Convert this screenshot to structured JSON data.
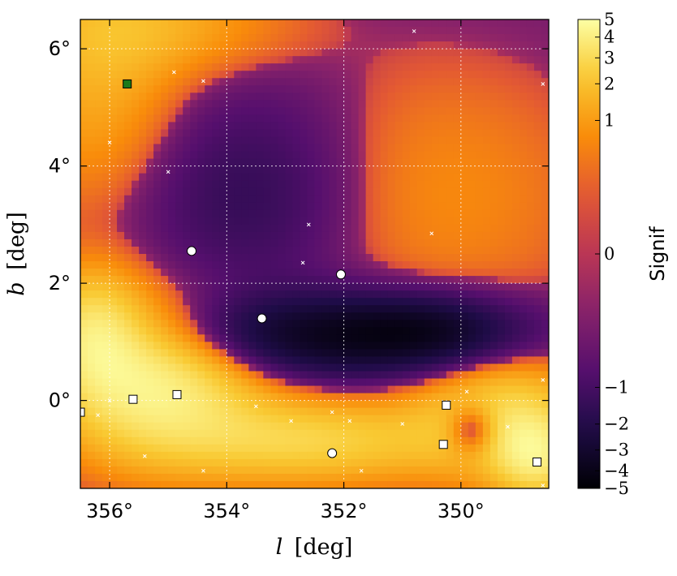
{
  "chart_data": {
    "type": "heatmap",
    "title": "",
    "xlabel_symbol": "l",
    "xlabel_unit": "[deg]",
    "ylabel_symbol": "b",
    "ylabel_unit": "[deg]",
    "x_direction": "decreasing",
    "xlim": [
      356.5,
      348.5
    ],
    "ylim": [
      -1.5,
      6.5
    ],
    "x_ticks": [
      {
        "value": 356,
        "label": "356°"
      },
      {
        "value": 354,
        "label": "354°"
      },
      {
        "value": 352,
        "label": "352°"
      },
      {
        "value": 350,
        "label": "350°"
      }
    ],
    "y_ticks": [
      {
        "value": 0,
        "label": "0°"
      },
      {
        "value": 2,
        "label": "2°"
      },
      {
        "value": 4,
        "label": "4°"
      },
      {
        "value": 6,
        "label": "6°"
      }
    ],
    "grid": true,
    "colormap": "inferno",
    "colorbar": {
      "label": "Signif",
      "range": [
        -5,
        5
      ],
      "ticks": [
        {
          "value": 5,
          "label": "5"
        },
        {
          "value": 4,
          "label": "4"
        },
        {
          "value": 3,
          "label": "3"
        },
        {
          "value": 2,
          "label": "2"
        },
        {
          "value": 1,
          "label": "1"
        },
        {
          "value": 0,
          "label": "0"
        },
        {
          "value": -1,
          "label": "−1"
        },
        {
          "value": -2,
          "label": "−2"
        },
        {
          "value": -3,
          "label": "−3"
        },
        {
          "value": -4,
          "label": "−4"
        },
        {
          "value": -5,
          "label": "−5"
        }
      ]
    },
    "significance_blobs": [
      {
        "l": 355.2,
        "b": 0.3,
        "sigma_l": 1.2,
        "sigma_b": 0.9,
        "amp": 4.5
      },
      {
        "l": 356.3,
        "b": 1.2,
        "sigma_l": 0.6,
        "sigma_b": 0.7,
        "amp": 3.0
      },
      {
        "l": 352.5,
        "b": -0.7,
        "sigma_l": 1.6,
        "sigma_b": 0.5,
        "amp": 2.8
      },
      {
        "l": 349.3,
        "b": -0.3,
        "sigma_l": 1.0,
        "sigma_b": 0.7,
        "amp": 3.0
      },
      {
        "l": 348.7,
        "b": -1.0,
        "sigma_l": 0.5,
        "sigma_b": 0.5,
        "amp": 3.0
      },
      {
        "l": 356.2,
        "b": 5.5,
        "sigma_l": 1.0,
        "sigma_b": 1.5,
        "amp": 1.6
      },
      {
        "l": 355.0,
        "b": 6.4,
        "sigma_l": 1.5,
        "sigma_b": 0.6,
        "amp": 1.3
      },
      {
        "l": 350.3,
        "b": 3.5,
        "sigma_l": 1.8,
        "sigma_b": 1.6,
        "amp": 0.9
      },
      {
        "l": 352.3,
        "b": 1.1,
        "sigma_l": 2.0,
        "sigma_b": 0.5,
        "amp": -3.5
      },
      {
        "l": 350.5,
        "b": 1.2,
        "sigma_l": 1.0,
        "sigma_b": 0.4,
        "amp": -1.8
      },
      {
        "l": 353.6,
        "b": 3.5,
        "sigma_l": 1.3,
        "sigma_b": 1.2,
        "amp": -1.3
      },
      {
        "l": 349.8,
        "b": -0.5,
        "sigma_l": 0.3,
        "sigma_b": 0.3,
        "amp": -3.0
      }
    ],
    "circle_markers": [
      {
        "l": 354.6,
        "b": 2.55
      },
      {
        "l": 352.05,
        "b": 2.15
      },
      {
        "l": 353.4,
        "b": 1.4
      },
      {
        "l": 352.2,
        "b": -0.9
      }
    ],
    "open_square_markers": [
      {
        "l": 355.6,
        "b": 0.02
      },
      {
        "l": 354.85,
        "b": 0.1
      },
      {
        "l": 356.5,
        "b": -0.2
      },
      {
        "l": 350.25,
        "b": -0.08
      },
      {
        "l": 350.3,
        "b": -0.75
      },
      {
        "l": 348.7,
        "b": -1.05
      }
    ],
    "filled_square_markers": [
      {
        "l": 355.7,
        "b": 5.4,
        "color": "#1a7a1a"
      }
    ],
    "cross_markers": [
      {
        "l": 350.8,
        "b": 6.3
      },
      {
        "l": 354.9,
        "b": 5.6
      },
      {
        "l": 354.4,
        "b": 5.45
      },
      {
        "l": 348.6,
        "b": 5.4
      },
      {
        "l": 356.0,
        "b": 4.4
      },
      {
        "l": 355.0,
        "b": 3.9
      },
      {
        "l": 352.6,
        "b": 3.0
      },
      {
        "l": 350.5,
        "b": 2.85
      },
      {
        "l": 352.7,
        "b": 2.35
      },
      {
        "l": 356.2,
        "b": -0.25
      },
      {
        "l": 356.0,
        "b": 0.0
      },
      {
        "l": 352.9,
        "b": -0.35
      },
      {
        "l": 352.2,
        "b": -0.2
      },
      {
        "l": 351.9,
        "b": -0.35
      },
      {
        "l": 351.0,
        "b": -0.4
      },
      {
        "l": 349.9,
        "b": 0.15
      },
      {
        "l": 349.2,
        "b": -0.45
      },
      {
        "l": 348.6,
        "b": 0.35
      },
      {
        "l": 355.4,
        "b": -0.95
      },
      {
        "l": 354.4,
        "b": -1.2
      },
      {
        "l": 351.7,
        "b": -1.2
      },
      {
        "l": 348.6,
        "b": -1.45
      },
      {
        "l": 353.5,
        "b": -0.1
      }
    ],
    "colors": {
      "frame": "#000000",
      "grid": "#ffffff",
      "circle_fill": "#ffffff",
      "square_fill": "#ffffff"
    }
  }
}
